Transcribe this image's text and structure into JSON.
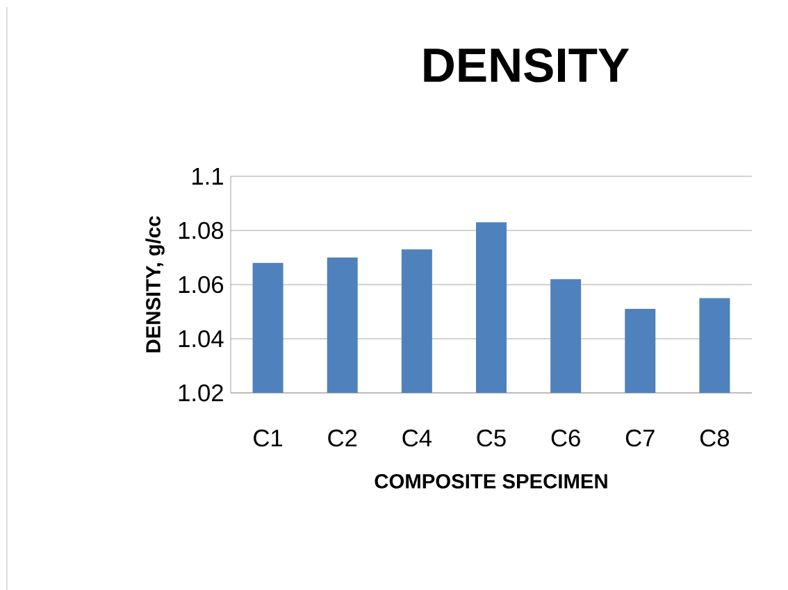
{
  "chart_data": {
    "type": "bar",
    "title": "DENSITY",
    "xlabel": "COMPOSITE SPECIMEN",
    "ylabel": "DENSITY, g/cc",
    "categories": [
      "C1",
      "C2",
      "C4",
      "C5",
      "C6",
      "C7",
      "C8"
    ],
    "values": [
      1.068,
      1.07,
      1.073,
      1.083,
      1.062,
      1.051,
      1.055
    ],
    "color": "#4f81bd",
    "ylim": [
      1.02,
      1.1
    ],
    "yticks": [
      1.02,
      1.04,
      1.06,
      1.08,
      1.1
    ],
    "grid": "y"
  }
}
